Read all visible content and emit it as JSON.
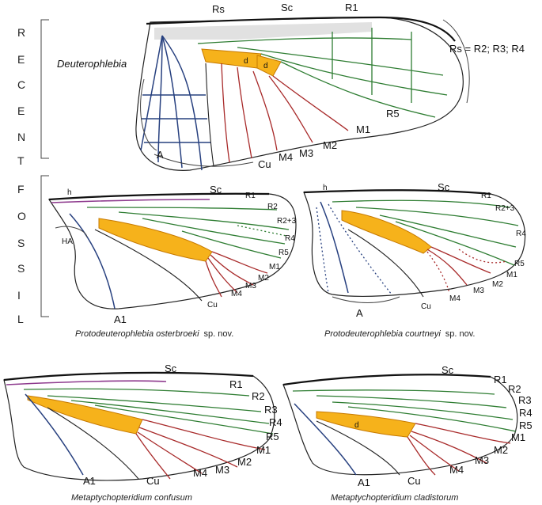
{
  "side_labels": {
    "recent": [
      "R",
      "E",
      "C",
      "E",
      "N",
      "T"
    ],
    "fossil": [
      "F",
      "O",
      "S",
      "S",
      "I",
      "L"
    ]
  },
  "recent_wing": {
    "title": "Deuterophlebia",
    "labels": {
      "rs": "Rs",
      "sc": "Sc",
      "r1": "R1",
      "r5": "R5",
      "m1": "M1",
      "m2": "M2",
      "m3": "M3",
      "m4": "M4",
      "cu": "Cu",
      "a": "A",
      "d1": "d",
      "d2": "d"
    },
    "rs_formula": "Rs = R2; R3; R4"
  },
  "fossil_1": {
    "caption_name": "Protodeuterophlebia  osterbroeki",
    "caption_suffix": "sp. nov.",
    "labels": {
      "h": "h",
      "sc": "Sc",
      "r1": "R1",
      "r2": "R2",
      "r23": "R2+3",
      "r4": "R4",
      "r5": "R5",
      "m1": "M1",
      "m2": "M2",
      "m3": "M3",
      "m4": "M4",
      "cu": "Cu",
      "a1": "A1",
      "ha": "HA"
    }
  },
  "fossil_2": {
    "caption_name": "Protodeuterophlebia courtneyi",
    "caption_suffix": "sp. nov.",
    "labels": {
      "h": "h",
      "sc": "Sc",
      "r1": "R1",
      "r23": "R2+3",
      "r4": "R4",
      "r5": "R5",
      "m1": "M1",
      "m2": "M2",
      "m3": "M3",
      "m4": "M4",
      "cu": "Cu",
      "a": "A"
    }
  },
  "fossil_3": {
    "caption_name": "Metaptychopteridium confusum",
    "labels": {
      "sc": "Sc",
      "r1": "R1",
      "r2": "R2",
      "r3": "R3",
      "r4": "R4",
      "r5": "R5",
      "m1": "M1",
      "m2": "M2",
      "m3": "M3",
      "m4": "M4",
      "cu": "Cu",
      "a1": "A1"
    }
  },
  "fossil_4": {
    "caption_name": "Metaptychopteridium cladistorum",
    "labels": {
      "sc": "Sc",
      "r1": "R1",
      "r2": "R2",
      "r3": "R3",
      "r4": "R4",
      "r5": "R5",
      "m1": "M1",
      "m2": "M2",
      "m3": "M3",
      "m4": "M4",
      "cu": "Cu",
      "a1": "A1",
      "d": "d"
    }
  },
  "colors": {
    "sc": "#8e3b8e",
    "radius": "#2e7d32",
    "media": "#a82a2a",
    "anal": "#27407f",
    "cell": "#f6b21b"
  }
}
